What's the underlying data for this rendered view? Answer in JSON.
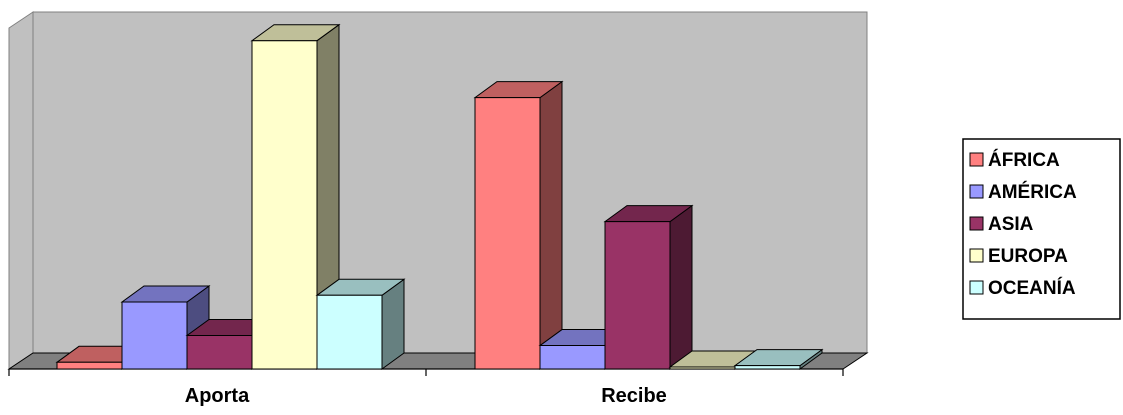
{
  "chart_data": {
    "type": "bar",
    "style": "3d-clustered-column",
    "title": "",
    "xlabel": "",
    "ylabel": "",
    "categories": [
      "Aporta",
      "Recibe"
    ],
    "ylim": [
      0,
      100
    ],
    "value_axis_labels": "none",
    "grid": false,
    "legend_position": "right",
    "series": [
      {
        "name": "ÁFRICA",
        "values": [
          2,
          81
        ],
        "color": "#ff8080"
      },
      {
        "name": "AMÉRICA",
        "values": [
          20,
          7
        ],
        "color": "#9999ff"
      },
      {
        "name": "ASIA",
        "values": [
          10,
          44
        ],
        "color": "#993366"
      },
      {
        "name": "EUROPA",
        "values": [
          98,
          0
        ],
        "color": "#ffffcc"
      },
      {
        "name": "OCEANÍA",
        "values": [
          22,
          1
        ],
        "color": "#ccffff"
      }
    ],
    "colors": {
      "wall": "#c0c0c0",
      "floor": "#808080",
      "axis": "#000000"
    }
  }
}
